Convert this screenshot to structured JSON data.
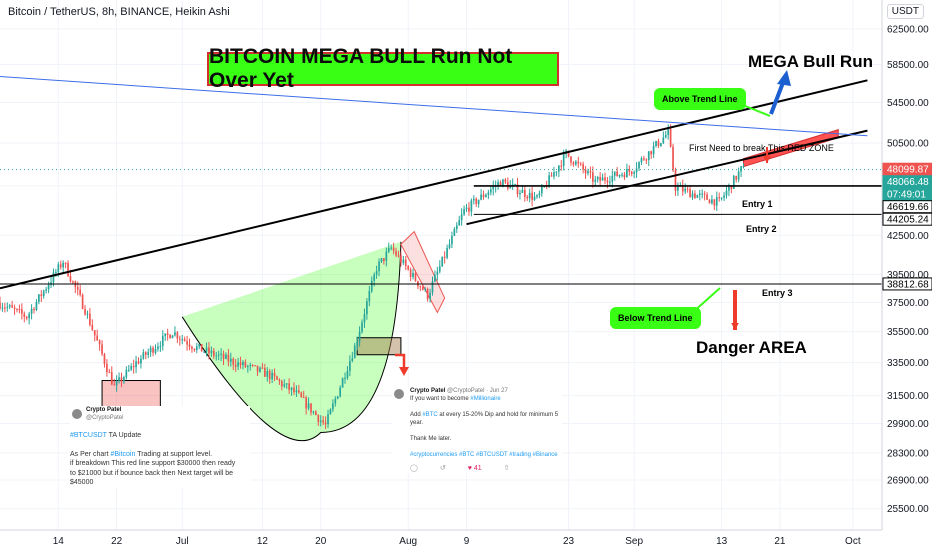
{
  "header": {
    "symbol_line": "Bitcoin / TetherUS, 8h, BINANCE, Heikin Ashi",
    "currency": "USDT"
  },
  "annotations": {
    "title": "BITCOIN MEGA BULL Run Not Over Yet",
    "mega_bull_run": "MEGA Bull Run",
    "above_trend_line": "Above Trend Line",
    "below_trend_line": "Below Trend Line",
    "first_need": "First Need to break This RED ZONE",
    "entry_1": "Entry 1",
    "entry_2": "Entry 2",
    "entry_3": "Entry 3",
    "danger_area": "Danger AREA"
  },
  "tweet_left": {
    "name": "Crypto Patel",
    "handle": "@CryptoPatel",
    "hashtag": "#BTCUSDT",
    "title_rest": " TA Update",
    "line1_a": "As Per chart ",
    "line1_tag": "#Bitcoin",
    "line1_b": " Trading at support level.",
    "line2": "if breakdown This red line support $30000 then ready",
    "line3": "to $21000 but if bounce back then Next target will be",
    "line4": "$45000"
  },
  "tweet_right": {
    "name": "Crypto Patel",
    "handle": "@CryptoPatel · Jun 27",
    "line1_a": "If you want to become ",
    "line1_tag": "#Millionaire",
    "line2_a": "Add ",
    "line2_tag": "#BTC",
    "line2_b": " at every 15-20% Dip and hold for minimum 5 year.",
    "line3": "Thank Me later.",
    "tags": "#cryptocurrencies #BTC #BTCUSDT #trading #Binance",
    "likes": "41"
  },
  "chart_data": {
    "type": "candlestick",
    "chart_style": "Heikin Ashi",
    "interval": "8h",
    "exchange": "BINANCE",
    "y_scale": "log",
    "ylim": [
      24500,
      66000
    ],
    "y_ticks": [
      25500,
      26900,
      28300,
      29900,
      31500,
      33500,
      35500,
      37500,
      39500,
      42500,
      46619.66,
      50500,
      54500,
      58500,
      62500
    ],
    "y_tick_labels": [
      "25500.00",
      "26900.00",
      "28300.00",
      "29900.00",
      "31500.00",
      "33500.00",
      "35500.00",
      "37500.00",
      "39500.00",
      "42500.00",
      "46619.66",
      "50500.00",
      "54500.00",
      "58500.00",
      "62500.00"
    ],
    "price_tags": [
      {
        "label": "48099.87",
        "value": 48099.87,
        "color": "#ef5350"
      },
      {
        "label": "48066.48",
        "value": 48066.48,
        "color": "#26a69a"
      },
      {
        "label": "07:49:01",
        "value": 47400,
        "color": "#26a69a"
      },
      {
        "label": "46619.66",
        "value": 46619.66,
        "color": "#ffffff"
      },
      {
        "label": "44205.24",
        "value": 44205.24,
        "color": "#ffffff"
      },
      {
        "label": "38812.68",
        "value": 38812.68,
        "color": "#ffffff"
      }
    ],
    "x_ticks": [
      {
        "label": "14",
        "date": "2021-06-14"
      },
      {
        "label": "22",
        "date": "2021-06-22"
      },
      {
        "label": "Jul",
        "date": "2021-07-01"
      },
      {
        "label": "12",
        "date": "2021-07-12"
      },
      {
        "label": "20",
        "date": "2021-07-20"
      },
      {
        "label": "Aug",
        "date": "2021-08-01"
      },
      {
        "label": "9",
        "date": "2021-08-09"
      },
      {
        "label": "23",
        "date": "2021-08-23"
      },
      {
        "label": "Sep",
        "date": "2021-09-01"
      },
      {
        "label": "13",
        "date": "2021-09-13"
      },
      {
        "label": "21",
        "date": "2021-09-21"
      },
      {
        "label": "Oct",
        "date": "2021-10-01"
      }
    ],
    "x_range": [
      "2021-06-06",
      "2021-10-05"
    ],
    "last_date": "2021-09-16",
    "price_path": [
      [
        "2021-06-06",
        37500
      ],
      [
        "2021-06-10",
        36500
      ],
      [
        "2021-06-15",
        40500
      ],
      [
        "2021-06-18",
        37000
      ],
      [
        "2021-06-22",
        32000
      ],
      [
        "2021-06-25",
        33500
      ],
      [
        "2021-06-30",
        35500
      ],
      [
        "2021-07-03",
        34500
      ],
      [
        "2021-07-08",
        33600
      ],
      [
        "2021-07-13",
        32800
      ],
      [
        "2021-07-17",
        31600
      ],
      [
        "2021-07-21",
        29800
      ],
      [
        "2021-07-25",
        34500
      ],
      [
        "2021-07-28",
        40000
      ],
      [
        "2021-07-30",
        41500
      ],
      [
        "2021-08-04",
        38000
      ],
      [
        "2021-08-09",
        44500
      ],
      [
        "2021-08-14",
        47000
      ],
      [
        "2021-08-19",
        45500
      ],
      [
        "2021-08-23",
        49500
      ],
      [
        "2021-08-27",
        47000
      ],
      [
        "2021-09-01",
        48000
      ],
      [
        "2021-09-06",
        51500
      ],
      [
        "2021-09-07",
        46500
      ],
      [
        "2021-09-10",
        45800
      ],
      [
        "2021-09-13",
        45200
      ],
      [
        "2021-09-16",
        48066
      ]
    ],
    "horizontal_lines": [
      {
        "value": 46619.66,
        "from": "2021-08-10",
        "label": "Entry 1"
      },
      {
        "value": 44205.24,
        "from": "2021-08-10",
        "label": "Entry 2"
      },
      {
        "value": 38812.68,
        "from": "2021-06-06",
        "label": "Entry 3"
      }
    ],
    "trend_lines": [
      {
        "name": "upper channel",
        "points": [
          [
            "2021-06-06",
            38500
          ],
          [
            "2021-10-03",
            56800
          ]
        ]
      },
      {
        "name": "lower channel",
        "points": [
          [
            "2021-08-09",
            43400
          ],
          [
            "2021-10-03",
            51700
          ]
        ]
      },
      {
        "name": "blue trend line",
        "points": [
          [
            "2021-06-06",
            57200
          ],
          [
            "2021-10-03",
            51200
          ]
        ]
      }
    ],
    "zones": [
      {
        "name": "red zone",
        "x": [
          "2021-09-16",
          "2021-09-29"
        ],
        "y": [
          48700,
          51400
        ]
      },
      {
        "name": "support box",
        "x": [
          "2021-06-20",
          "2021-06-28"
        ],
        "y": [
          30800,
          32400
        ]
      },
      {
        "name": "retest box",
        "x": [
          "2021-07-25",
          "2021-07-31"
        ],
        "y": [
          34000,
          35100
        ]
      }
    ],
    "cup_shape": {
      "start": [
        "2021-07-01",
        36500
      ],
      "bottom": [
        "2021-07-20",
        29400
      ],
      "end": [
        "2021-07-31",
        42000
      ]
    }
  }
}
